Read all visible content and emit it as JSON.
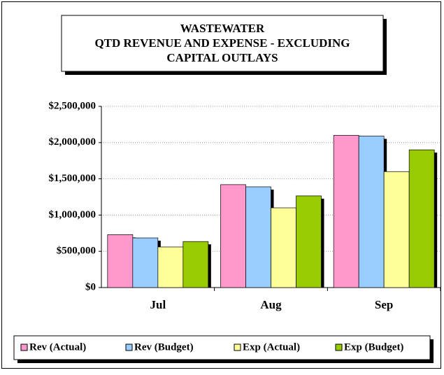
{
  "chart_data": {
    "type": "bar",
    "title": [
      "WASTEWATER",
      "QTD REVENUE AND EXPENSE - EXCLUDING",
      "CAPITAL OUTLAYS"
    ],
    "categories": [
      "Jul",
      "Aug",
      "Sep"
    ],
    "series": [
      {
        "name": "Rev (Actual)",
        "color": "#ff99cc",
        "values": [
          730000,
          1420000,
          2100000
        ]
      },
      {
        "name": "Rev (Budget)",
        "color": "#99ccff",
        "values": [
          685000,
          1390000,
          2090000
        ]
      },
      {
        "name": "Exp (Actual)",
        "color": "#ffff99",
        "values": [
          560000,
          1100000,
          1600000
        ]
      },
      {
        "name": "Exp (Budget)",
        "color": "#99cc00",
        "values": [
          635000,
          1265000,
          1900000
        ]
      }
    ],
    "ylim": [
      0,
      2500000
    ],
    "yticks": [
      {
        "value": 0,
        "label": "$0"
      },
      {
        "value": 500000,
        "label": "$500,000"
      },
      {
        "value": 1000000,
        "label": "$1,000,000"
      },
      {
        "value": 1500000,
        "label": "$1,500,000"
      },
      {
        "value": 2000000,
        "label": "$2,000,000"
      },
      {
        "value": 2500000,
        "label": "$2,500,000"
      }
    ],
    "grid": true,
    "legend": "bottom"
  }
}
